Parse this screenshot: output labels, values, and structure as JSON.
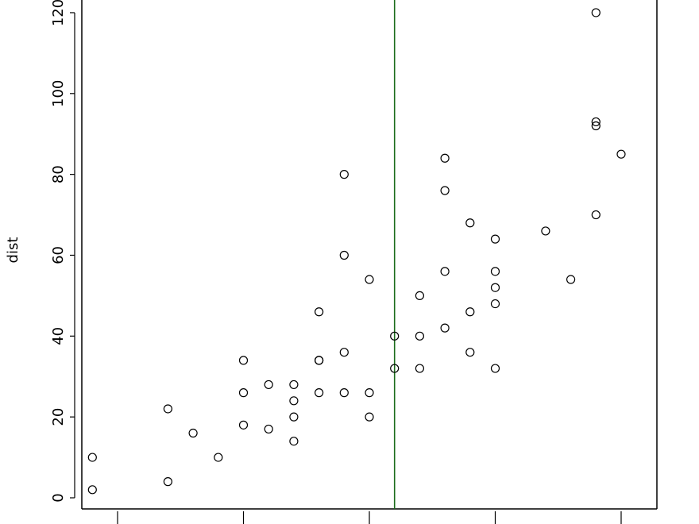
{
  "chart_data": {
    "type": "scatter",
    "title": "",
    "xlabel": "",
    "ylabel": "dist",
    "xlim": [
      3.58,
      26.42
    ],
    "ylim": [
      0,
      123
    ],
    "y_ticks": [
      0,
      20,
      40,
      60,
      80,
      100,
      120
    ],
    "y_tick_labels": [
      "0",
      "20",
      "40",
      "60",
      "80",
      "100",
      "120"
    ],
    "x_ticks": [
      5,
      10,
      15,
      20,
      25
    ],
    "grid": false,
    "marker": "open-circle",
    "vline": {
      "x": 16,
      "color": "#1a6b1a"
    },
    "points": [
      {
        "x": 4,
        "y": 2
      },
      {
        "x": 4,
        "y": 10
      },
      {
        "x": 7,
        "y": 4
      },
      {
        "x": 7,
        "y": 22
      },
      {
        "x": 8,
        "y": 16
      },
      {
        "x": 9,
        "y": 10
      },
      {
        "x": 10,
        "y": 18
      },
      {
        "x": 10,
        "y": 26
      },
      {
        "x": 10,
        "y": 34
      },
      {
        "x": 11,
        "y": 17
      },
      {
        "x": 11,
        "y": 28
      },
      {
        "x": 12,
        "y": 14
      },
      {
        "x": 12,
        "y": 20
      },
      {
        "x": 12,
        "y": 24
      },
      {
        "x": 12,
        "y": 28
      },
      {
        "x": 13,
        "y": 26
      },
      {
        "x": 13,
        "y": 34
      },
      {
        "x": 13,
        "y": 34
      },
      {
        "x": 13,
        "y": 46
      },
      {
        "x": 14,
        "y": 26
      },
      {
        "x": 14,
        "y": 36
      },
      {
        "x": 14,
        "y": 60
      },
      {
        "x": 14,
        "y": 80
      },
      {
        "x": 15,
        "y": 20
      },
      {
        "x": 15,
        "y": 26
      },
      {
        "x": 15,
        "y": 54
      },
      {
        "x": 16,
        "y": 32
      },
      {
        "x": 16,
        "y": 40
      },
      {
        "x": 17,
        "y": 32
      },
      {
        "x": 17,
        "y": 40
      },
      {
        "x": 17,
        "y": 50
      },
      {
        "x": 18,
        "y": 42
      },
      {
        "x": 18,
        "y": 56
      },
      {
        "x": 18,
        "y": 76
      },
      {
        "x": 18,
        "y": 84
      },
      {
        "x": 19,
        "y": 36
      },
      {
        "x": 19,
        "y": 46
      },
      {
        "x": 19,
        "y": 68
      },
      {
        "x": 20,
        "y": 32
      },
      {
        "x": 20,
        "y": 48
      },
      {
        "x": 20,
        "y": 52
      },
      {
        "x": 20,
        "y": 56
      },
      {
        "x": 20,
        "y": 64
      },
      {
        "x": 22,
        "y": 66
      },
      {
        "x": 23,
        "y": 54
      },
      {
        "x": 24,
        "y": 70
      },
      {
        "x": 24,
        "y": 92
      },
      {
        "x": 24,
        "y": 93
      },
      {
        "x": 24,
        "y": 120
      },
      {
        "x": 25,
        "y": 85
      }
    ]
  }
}
